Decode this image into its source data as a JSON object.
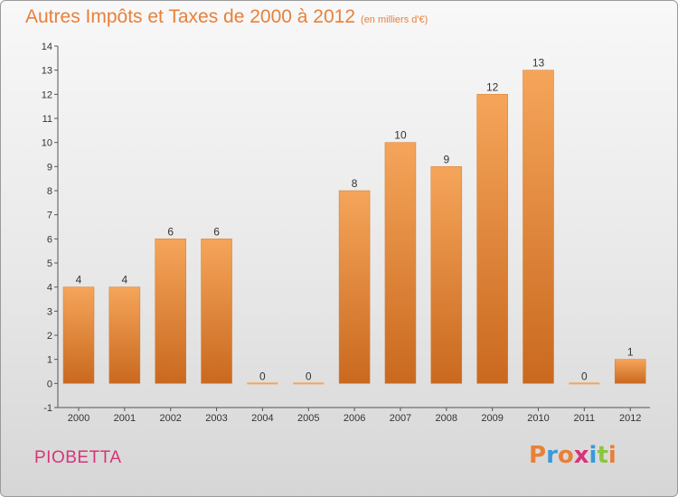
{
  "header": {
    "title": "Autres Impôts et Taxes de 2000 à 2012",
    "subtitle": "(en milliers d'€)"
  },
  "footer": {
    "commune": "PIOBETTA",
    "brand": "Proxiti"
  },
  "colors": {
    "title": "#e8803a",
    "commune": "#d8337a",
    "bar_top": "#f5a55a",
    "bar_bottom": "#c9691f",
    "brand_letters": [
      "#e8803a",
      "#3a9ad8",
      "#e8803a",
      "#d8337a",
      "#3a9ad8",
      "#8cc63f",
      "#e8803a"
    ]
  },
  "chart_data": {
    "type": "bar",
    "categories": [
      "2000",
      "2001",
      "2002",
      "2003",
      "2004",
      "2005",
      "2006",
      "2007",
      "2008",
      "2009",
      "2010",
      "2011",
      "2012"
    ],
    "values": [
      4,
      4,
      6,
      6,
      0,
      0,
      8,
      10,
      9,
      12,
      13,
      0,
      1
    ],
    "title": "Autres Impôts et Taxes de 2000 à 2012",
    "ylim": [
      -1,
      14
    ],
    "yticks": [
      "-1",
      "0",
      "1",
      "2",
      "3",
      "4",
      "5",
      "6",
      "7",
      "8",
      "9",
      "10",
      "11",
      "12",
      "13",
      "14"
    ],
    "grid": false,
    "data_labels": true
  }
}
